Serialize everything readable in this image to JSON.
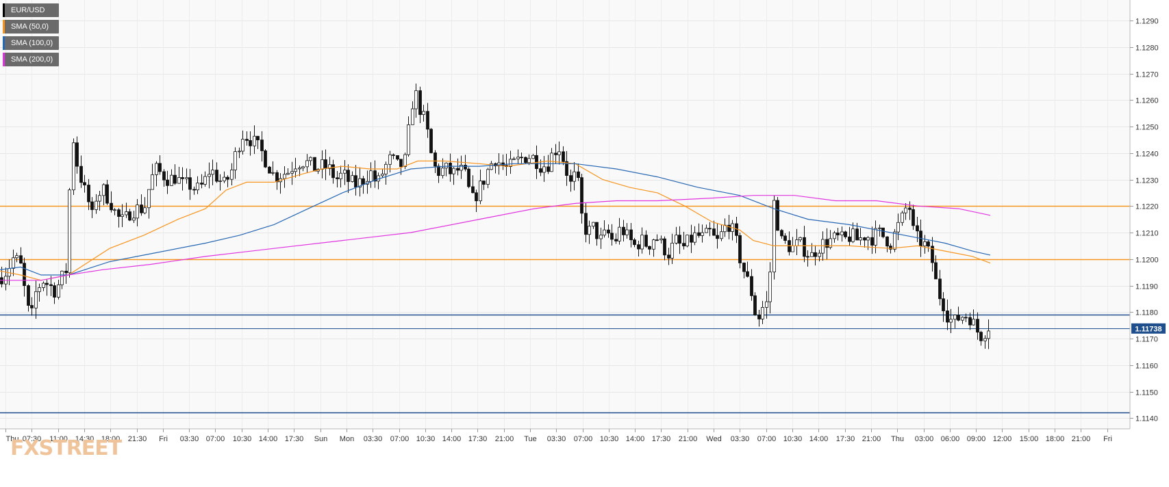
{
  "legend": [
    {
      "label": "EUR/USD",
      "color": "#000000"
    },
    {
      "label": "SMA (50,0)",
      "color": "#f7941d"
    },
    {
      "label": "SMA (100,0)",
      "color": "#2767b4"
    },
    {
      "label": "SMA (200,0)",
      "color": "#e033e0"
    }
  ],
  "watermark": "FXSTREET",
  "chart_data": {
    "type": "candlestick",
    "title": "",
    "xlabel": "",
    "ylabel": "",
    "ylim": [
      1.1135,
      1.1298
    ],
    "y_ticks": [
      1.114,
      1.115,
      1.116,
      1.117,
      1.118,
      1.119,
      1.12,
      1.121,
      1.122,
      1.123,
      1.124,
      1.125,
      1.126,
      1.127,
      1.128,
      1.129
    ],
    "y_tick_labels": [
      "1.1140",
      "1.1150",
      "1.1160",
      "1.1170",
      "1.1180",
      "1.1190",
      "1.1200",
      "1.1210",
      "1.1220",
      "1.1230",
      "1.1240",
      "1.1250",
      "1.1260",
      "1.1270",
      "1.1280",
      "1.1290"
    ],
    "x_ticks": [
      "Thu",
      "07:30",
      "11:00",
      "14:30",
      "18:00",
      "21:30",
      "Fri",
      "03:30",
      "07:00",
      "10:30",
      "14:00",
      "17:30",
      "Sun",
      "Mon",
      "03:30",
      "07:00",
      "10:30",
      "14:00",
      "17:30",
      "21:00",
      "Tue",
      "03:30",
      "07:00",
      "10:30",
      "14:00",
      "17:30",
      "21:00",
      "Wed",
      "03:30",
      "07:00",
      "10:30",
      "14:00",
      "17:30",
      "21:00",
      "Thu",
      "03:00",
      "06:00",
      "09:00",
      "12:00",
      "15:00",
      "18:00",
      "21:00",
      "Fri"
    ],
    "grid": true,
    "legend_position": "top-left",
    "last_price": "1.11738",
    "horizontal_levels": [
      {
        "value": 1.122,
        "color": "#f7941d"
      },
      {
        "value": 1.12,
        "color": "#f7941d"
      },
      {
        "value": 1.1179,
        "color": "#1f4e8c"
      },
      {
        "value": 1.1142,
        "color": "#1f4e8c"
      },
      {
        "value": 1.11738,
        "color": "#1f4e8c"
      }
    ],
    "price_path": [
      [
        0,
        1.1193
      ],
      [
        10,
        1.1196
      ],
      [
        20,
        1.1201
      ],
      [
        30,
        1.1197
      ],
      [
        38,
        1.1184
      ],
      [
        44,
        1.1176
      ],
      [
        52,
        1.1188
      ],
      [
        62,
        1.1192
      ],
      [
        72,
        1.119
      ],
      [
        80,
        1.1188
      ],
      [
        88,
        1.1192
      ],
      [
        96,
        1.1196
      ],
      [
        101,
        1.1226
      ],
      [
        106,
        1.1246
      ],
      [
        112,
        1.1236
      ],
      [
        120,
        1.1228
      ],
      [
        128,
        1.1222
      ],
      [
        134,
        1.1216
      ],
      [
        140,
        1.1224
      ],
      [
        150,
        1.1226
      ],
      [
        160,
        1.1222
      ],
      [
        170,
        1.1216
      ],
      [
        180,
        1.1214
      ],
      [
        190,
        1.1218
      ],
      [
        200,
        1.1219
      ],
      [
        210,
        1.1219
      ],
      [
        218,
        1.1228
      ],
      [
        226,
        1.1234
      ],
      [
        236,
        1.1232
      ],
      [
        246,
        1.123
      ],
      [
        256,
        1.1231
      ],
      [
        266,
        1.1228
      ],
      [
        276,
        1.1228
      ],
      [
        286,
        1.1226
      ],
      [
        296,
        1.1228
      ],
      [
        306,
        1.1234
      ],
      [
        316,
        1.1231
      ],
      [
        326,
        1.1228
      ],
      [
        336,
        1.1232
      ],
      [
        346,
        1.1242
      ],
      [
        354,
        1.1247
      ],
      [
        362,
        1.1246
      ],
      [
        370,
        1.1244
      ],
      [
        380,
        1.1241
      ],
      [
        390,
        1.1236
      ],
      [
        400,
        1.1231
      ],
      [
        410,
        1.1232
      ],
      [
        420,
        1.1233
      ],
      [
        430,
        1.1236
      ],
      [
        440,
        1.1237
      ],
      [
        450,
        1.1236
      ],
      [
        460,
        1.1234
      ],
      [
        470,
        1.1235
      ],
      [
        480,
        1.1234
      ],
      [
        490,
        1.123
      ],
      [
        500,
        1.1232
      ],
      [
        510,
        1.1229
      ],
      [
        520,
        1.1228
      ],
      [
        530,
        1.123
      ],
      [
        540,
        1.1233
      ],
      [
        550,
        1.1228
      ],
      [
        560,
        1.1234
      ],
      [
        570,
        1.1238
      ],
      [
        580,
        1.1235
      ],
      [
        590,
        1.1236
      ],
      [
        596,
        1.1248
      ],
      [
        602,
        1.126
      ],
      [
        608,
        1.1262
      ],
      [
        614,
        1.1255
      ],
      [
        620,
        1.1252
      ],
      [
        626,
        1.1244
      ],
      [
        632,
        1.1235
      ],
      [
        640,
        1.1233
      ],
      [
        650,
        1.1234
      ],
      [
        660,
        1.1232
      ],
      [
        670,
        1.1234
      ],
      [
        678,
        1.1232
      ],
      [
        684,
        1.1226
      ],
      [
        690,
        1.1222
      ],
      [
        698,
        1.1226
      ],
      [
        706,
        1.123
      ],
      [
        714,
        1.1235
      ],
      [
        722,
        1.1238
      ],
      [
        730,
        1.1236
      ],
      [
        740,
        1.1234
      ],
      [
        750,
        1.1236
      ],
      [
        760,
        1.1238
      ],
      [
        770,
        1.1239
      ],
      [
        780,
        1.1238
      ],
      [
        790,
        1.1235
      ],
      [
        800,
        1.1236
      ],
      [
        808,
        1.1241
      ],
      [
        816,
        1.1242
      ],
      [
        824,
        1.1236
      ],
      [
        832,
        1.1228
      ],
      [
        840,
        1.1232
      ],
      [
        846,
        1.1225
      ],
      [
        850,
        1.1213
      ],
      [
        858,
        1.121
      ],
      [
        866,
        1.1212
      ],
      [
        876,
        1.1207
      ],
      [
        886,
        1.121
      ],
      [
        896,
        1.1206
      ],
      [
        906,
        1.1212
      ],
      [
        916,
        1.1208
      ],
      [
        926,
        1.1205
      ],
      [
        936,
        1.1207
      ],
      [
        946,
        1.1205
      ],
      [
        956,
        1.1209
      ],
      [
        966,
        1.1205
      ],
      [
        976,
        1.1202
      ],
      [
        986,
        1.1207
      ],
      [
        996,
        1.1204
      ],
      [
        1006,
        1.1207
      ],
      [
        1016,
        1.1209
      ],
      [
        1026,
        1.1208
      ],
      [
        1036,
        1.121
      ],
      [
        1046,
        1.1206
      ],
      [
        1054,
        1.121
      ],
      [
        1062,
        1.1214
      ],
      [
        1070,
        1.121
      ],
      [
        1076,
        1.1205
      ],
      [
        1082,
        1.1198
      ],
      [
        1088,
        1.1194
      ],
      [
        1096,
        1.1188
      ],
      [
        1102,
        1.118
      ],
      [
        1108,
        1.1178
      ],
      [
        1116,
        1.1184
      ],
      [
        1122,
        1.1182
      ],
      [
        1128,
        1.1222
      ],
      [
        1132,
        1.122
      ],
      [
        1138,
        1.1207
      ],
      [
        1146,
        1.1206
      ],
      [
        1156,
        1.1204
      ],
      [
        1166,
        1.1206
      ],
      [
        1176,
        1.1203
      ],
      [
        1184,
        1.1201
      ],
      [
        1192,
        1.1204
      ],
      [
        1202,
        1.1206
      ],
      [
        1212,
        1.1207
      ],
      [
        1222,
        1.1208
      ],
      [
        1232,
        1.1207
      ],
      [
        1242,
        1.1209
      ],
      [
        1252,
        1.1207
      ],
      [
        1262,
        1.1209
      ],
      [
        1272,
        1.1208
      ],
      [
        1282,
        1.121
      ],
      [
        1292,
        1.1208
      ],
      [
        1300,
        1.1206
      ],
      [
        1310,
        1.1212
      ],
      [
        1318,
        1.1216
      ],
      [
        1326,
        1.1222
      ],
      [
        1332,
        1.1211
      ],
      [
        1340,
        1.1207
      ],
      [
        1348,
        1.1206
      ],
      [
        1356,
        1.1202
      ],
      [
        1362,
        1.1198
      ],
      [
        1368,
        1.1188
      ],
      [
        1376,
        1.1184
      ],
      [
        1384,
        1.1178
      ],
      [
        1392,
        1.1176
      ],
      [
        1400,
        1.1178
      ],
      [
        1408,
        1.1179
      ],
      [
        1416,
        1.1178
      ],
      [
        1424,
        1.1174
      ],
      [
        1430,
        1.1171
      ],
      [
        1436,
        1.1172
      ],
      [
        1442,
        1.1175
      ],
      [
        1446,
        1.1174
      ]
    ],
    "series": [
      {
        "name": "SMA (50,0)",
        "color": "#f7941d",
        "points": [
          [
            0,
            1.11955
          ],
          [
            30,
            1.1194
          ],
          [
            60,
            1.1192
          ],
          [
            100,
            1.1194
          ],
          [
            130,
            1.1199
          ],
          [
            160,
            1.1204
          ],
          [
            210,
            1.1209
          ],
          [
            260,
            1.1215
          ],
          [
            300,
            1.1219
          ],
          [
            330,
            1.1226
          ],
          [
            360,
            1.1229
          ],
          [
            400,
            1.1229
          ],
          [
            440,
            1.1232
          ],
          [
            470,
            1.1234
          ],
          [
            500,
            1.1235
          ],
          [
            540,
            1.1234
          ],
          [
            580,
            1.1234
          ],
          [
            610,
            1.1237
          ],
          [
            650,
            1.1237
          ],
          [
            700,
            1.1236
          ],
          [
            740,
            1.1235
          ],
          [
            800,
            1.1237
          ],
          [
            840,
            1.1236
          ],
          [
            880,
            1.123
          ],
          [
            920,
            1.1227
          ],
          [
            960,
            1.1225
          ],
          [
            1000,
            1.122
          ],
          [
            1040,
            1.1214
          ],
          [
            1080,
            1.1211
          ],
          [
            1100,
            1.1207
          ],
          [
            1130,
            1.1205
          ],
          [
            1180,
            1.1205
          ],
          [
            1240,
            1.1205
          ],
          [
            1300,
            1.1204
          ],
          [
            1340,
            1.1205
          ],
          [
            1380,
            1.1203
          ],
          [
            1420,
            1.1201
          ],
          [
            1446,
            1.11985
          ]
        ]
      },
      {
        "name": "SMA (100,0)",
        "color": "#2767b4",
        "points": [
          [
            0,
            1.1196
          ],
          [
            30,
            1.1197
          ],
          [
            60,
            1.1194
          ],
          [
            100,
            1.1194
          ],
          [
            160,
            1.1199
          ],
          [
            220,
            1.1202
          ],
          [
            300,
            1.1206
          ],
          [
            350,
            1.1209
          ],
          [
            400,
            1.1213
          ],
          [
            450,
            1.1219
          ],
          [
            500,
            1.1225
          ],
          [
            550,
            1.123
          ],
          [
            600,
            1.1234
          ],
          [
            650,
            1.1235
          ],
          [
            700,
            1.1235
          ],
          [
            750,
            1.1236
          ],
          [
            800,
            1.1236
          ],
          [
            840,
            1.1236
          ],
          [
            900,
            1.1234
          ],
          [
            960,
            1.1231
          ],
          [
            1020,
            1.1227
          ],
          [
            1080,
            1.1224
          ],
          [
            1130,
            1.1219
          ],
          [
            1180,
            1.1215
          ],
          [
            1240,
            1.1213
          ],
          [
            1300,
            1.121
          ],
          [
            1340,
            1.1208
          ],
          [
            1380,
            1.1206
          ],
          [
            1420,
            1.1203
          ],
          [
            1446,
            1.12015
          ]
        ]
      },
      {
        "name": "SMA (200,0)",
        "color": "#e033e0",
        "points": [
          [
            0,
            1.1192
          ],
          [
            60,
            1.1192
          ],
          [
            100,
            1.1194
          ],
          [
            150,
            1.1196
          ],
          [
            220,
            1.1198
          ],
          [
            300,
            1.1201
          ],
          [
            400,
            1.1204
          ],
          [
            500,
            1.1207
          ],
          [
            600,
            1.121
          ],
          [
            700,
            1.1215
          ],
          [
            780,
            1.1219
          ],
          [
            840,
            1.1221
          ],
          [
            900,
            1.1222
          ],
          [
            960,
            1.1222
          ],
          [
            1040,
            1.1223
          ],
          [
            1100,
            1.1224
          ],
          [
            1160,
            1.1224
          ],
          [
            1220,
            1.1222
          ],
          [
            1280,
            1.1222
          ],
          [
            1340,
            1.122
          ],
          [
            1400,
            1.1219
          ],
          [
            1446,
            1.12165
          ]
        ]
      }
    ]
  }
}
